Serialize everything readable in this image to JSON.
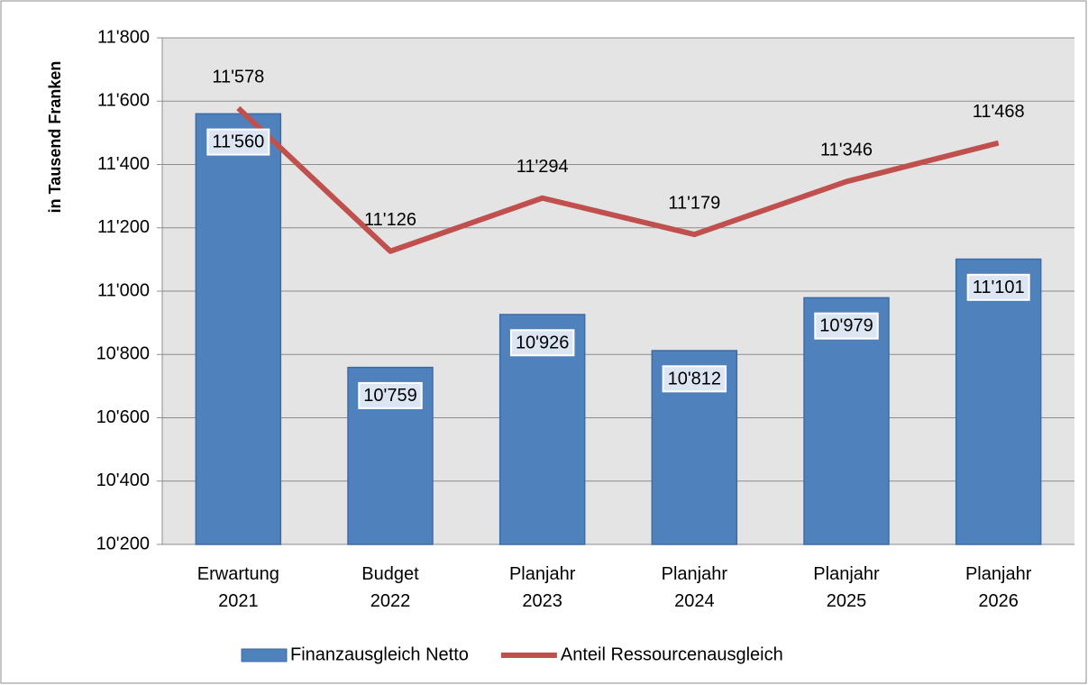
{
  "chart_data": {
    "type": "bar",
    "y_label": "in Tausend Franken",
    "categories": [
      "Erwartung 2021",
      "Budget 2022",
      "Planjahr 2023",
      "Planjahr 2024",
      "Planjahr 2025",
      "Planjahr 2026"
    ],
    "series": [
      {
        "name": "Finanzausgleich Netto",
        "type": "bar",
        "color": "#4f81bd",
        "values": [
          11560,
          10759,
          10926,
          10812,
          10979,
          11101
        ],
        "value_labels": [
          "11'560",
          "10'759",
          "10'926",
          "10'812",
          "10'979",
          "11'101"
        ]
      },
      {
        "name": "Anteil Ressourcenausgleich",
        "type": "line",
        "color": "#c0504d",
        "values": [
          11578,
          11126,
          11294,
          11179,
          11346,
          11468
        ],
        "value_labels": [
          "11'578",
          "11'126",
          "11'294",
          "11'179",
          "11'346",
          "11'468"
        ]
      }
    ],
    "ylim": [
      10200,
      11800
    ],
    "yticks": [
      {
        "value": 10200,
        "label": "10'200"
      },
      {
        "value": 10400,
        "label": "10'400"
      },
      {
        "value": 10600,
        "label": "10'600"
      },
      {
        "value": 10800,
        "label": "10'800"
      },
      {
        "value": 11000,
        "label": "11'000"
      },
      {
        "value": 11200,
        "label": "11'200"
      },
      {
        "value": 11400,
        "label": "11'400"
      },
      {
        "value": 11600,
        "label": "11'600"
      },
      {
        "value": 11800,
        "label": "11'800"
      }
    ],
    "grid": true,
    "legend": "bottom"
  }
}
